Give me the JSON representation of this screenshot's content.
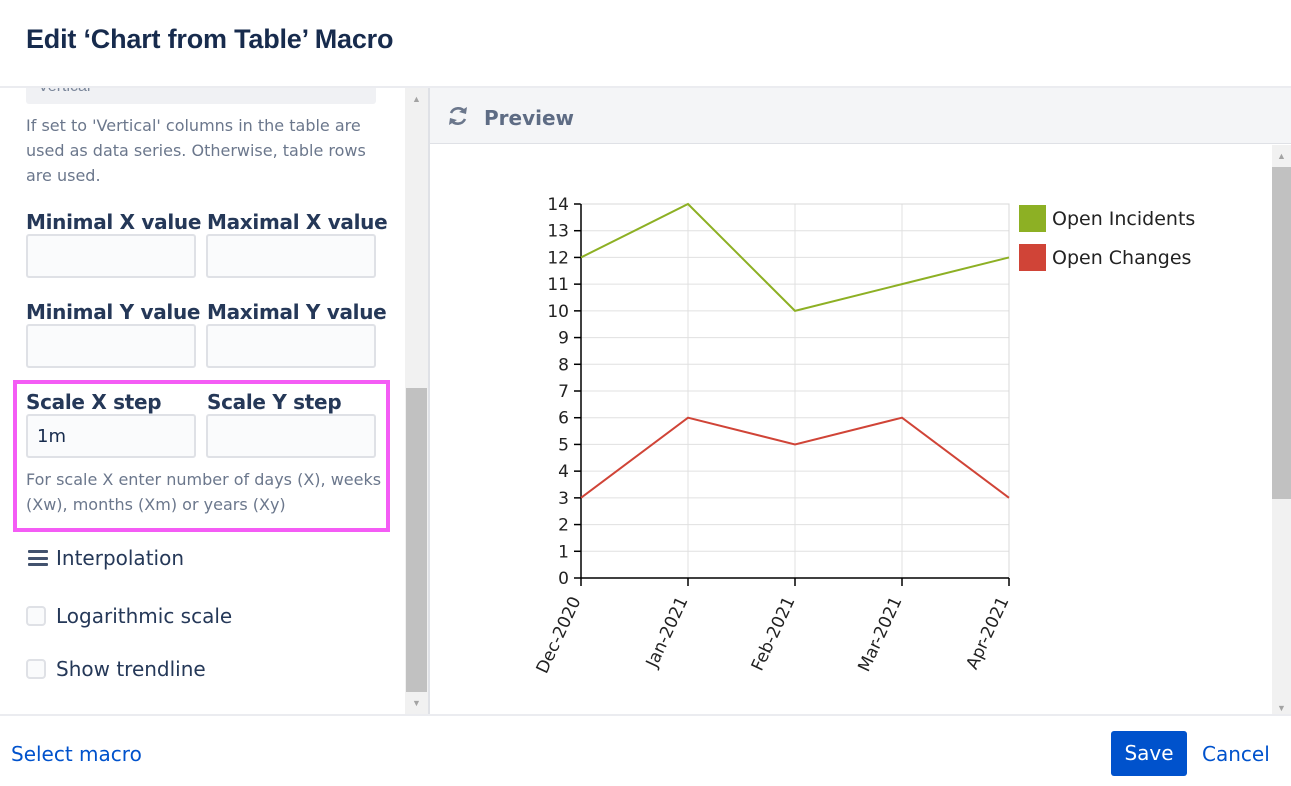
{
  "dialog": {
    "title": "Edit ‘Chart from Table’ Macro"
  },
  "form": {
    "orientation_value_partial": "Vertical",
    "orientation_help": [
      "If set to 'Vertical' columns in the table are",
      "used as data series. Otherwise, table rows",
      "are used."
    ],
    "min_x_label": "Minimal X value",
    "max_x_label": "Maximal X value",
    "min_x_value": "",
    "max_x_value": "",
    "min_y_label": "Minimal Y value",
    "max_y_label": "Maximal Y value",
    "min_y_value": "",
    "max_y_value": "",
    "scale_x_label": "Scale X step",
    "scale_y_label": "Scale Y step",
    "scale_x_value": "1m",
    "scale_y_value": "",
    "scale_help": [
      "For scale X enter number of days (X), weeks",
      "(Xw), months (Xm) or years (Xy)"
    ],
    "interpolation_label": "Interpolation",
    "logarithmic_label": "Logarithmic scale",
    "logarithmic_checked": false,
    "trendline_label": "Show trendline",
    "trendline_checked": false,
    "highlight_color": "#f45cf5"
  },
  "preview": {
    "label": "Preview",
    "icon": "refresh-icon"
  },
  "chart_data": {
    "type": "line",
    "categories": [
      "Dec-2020",
      "Jan-2021",
      "Feb-2021",
      "Mar-2021",
      "Apr-2021"
    ],
    "series": [
      {
        "name": "Open Incidents",
        "color": "#8db024",
        "values": [
          12,
          14,
          10,
          11,
          12
        ]
      },
      {
        "name": "Open Changes",
        "color": "#d04437",
        "values": [
          3,
          6,
          5,
          6,
          3
        ]
      }
    ],
    "ylim": [
      0,
      14
    ],
    "yticks": [
      0,
      1,
      2,
      3,
      4,
      5,
      6,
      7,
      8,
      9,
      10,
      11,
      12,
      13,
      14
    ],
    "grid": true,
    "legend": "right",
    "title": "",
    "xlabel": "",
    "ylabel": ""
  },
  "footer": {
    "select_macro": "Select macro",
    "save": "Save",
    "cancel": "Cancel"
  },
  "colors": {
    "primary": "#0052cc",
    "text": "#172b4d"
  }
}
